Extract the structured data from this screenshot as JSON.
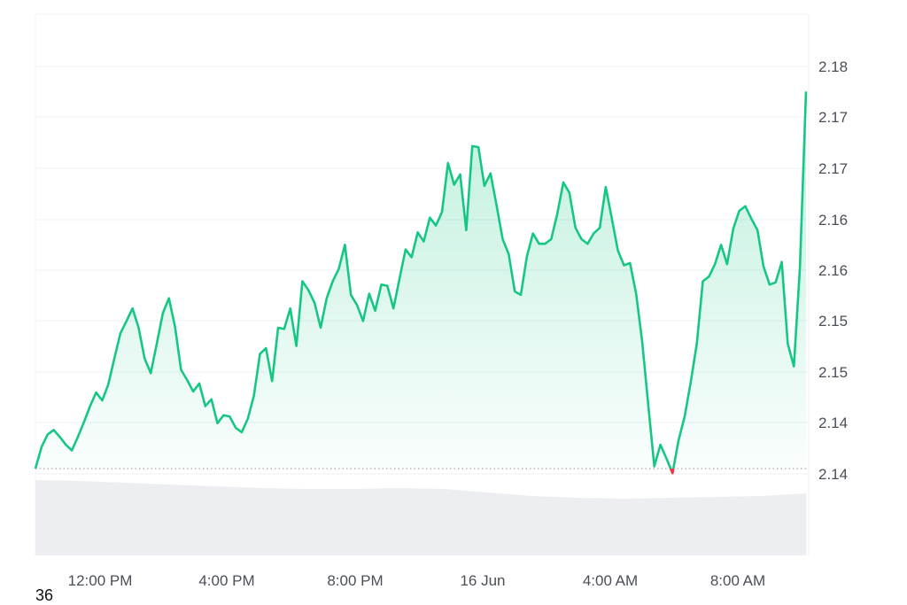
{
  "chart_data": {
    "type": "area",
    "title": "",
    "xlabel": "",
    "ylabel": "",
    "y_tick_labels": [
      "2.18",
      "2.17",
      "2.17",
      "2.16",
      "2.16",
      "2.15",
      "2.15",
      "2.14",
      "2.14"
    ],
    "x_tick_labels": [
      "12:00 PM",
      "4:00 PM",
      "8:00 PM",
      "16 Jun",
      "4:00 AM",
      "8:00 AM"
    ],
    "ylim": [
      2.1365,
      2.1815
    ],
    "baseline": 2.1418,
    "grid": true,
    "legend": "none",
    "colors": {
      "up": "#16c784",
      "down": "#ea3943",
      "fill_top": "#16c784",
      "volume": "#eceef1",
      "grid": "#eef0f3"
    },
    "series": [
      {
        "values": [
          2.1418,
          2.1437,
          2.1448,
          2.1452,
          2.1446,
          2.1439,
          2.1434,
          2.1446,
          2.1459,
          2.1473,
          2.1485,
          2.1478,
          2.1492,
          2.1515,
          2.1537,
          2.1548,
          2.1559,
          2.1542,
          2.1515,
          2.1502,
          2.1528,
          2.1555,
          2.1568,
          2.1543,
          2.1505,
          2.1496,
          2.1486,
          2.1493,
          2.1473,
          2.1479,
          2.1458,
          2.1465,
          2.1464,
          2.1454,
          2.145,
          2.1462,
          2.1482,
          2.1519,
          2.1524,
          2.1495,
          2.1542,
          2.1541,
          2.1559,
          2.1526,
          2.1583,
          2.1575,
          2.1564,
          2.1542,
          2.1568,
          2.1583,
          2.1594,
          2.1615,
          2.1571,
          2.1562,
          2.1548,
          2.1572,
          2.1557,
          2.158,
          2.1579,
          2.1559,
          2.1585,
          2.1611,
          2.1604,
          2.1626,
          2.1618,
          2.1639,
          2.1632,
          2.1644,
          2.1687,
          2.1668,
          2.1677,
          2.1628,
          2.1702,
          2.1701,
          2.1667,
          2.1678,
          2.165,
          2.162,
          2.1607,
          2.1574,
          2.1571,
          2.1605,
          2.1625,
          2.1616,
          2.1616,
          2.162,
          2.1642,
          2.167,
          2.1661,
          2.163,
          2.162,
          2.1616,
          2.1625,
          2.163,
          2.1666,
          2.1638,
          2.161,
          2.1597,
          2.1599,
          2.1572,
          2.153,
          2.1474,
          2.142,
          2.1439,
          2.1427,
          2.1414,
          2.1443,
          2.1464,
          2.1494,
          2.1528,
          2.1583,
          2.1587,
          2.1598,
          2.1615,
          2.1598,
          2.1629,
          2.1645,
          2.1649,
          2.1638,
          2.1628,
          2.1596,
          2.158,
          2.1582,
          2.16,
          2.1528,
          2.1508,
          2.1595,
          2.175
        ]
      }
    ]
  },
  "corner_label": "36"
}
